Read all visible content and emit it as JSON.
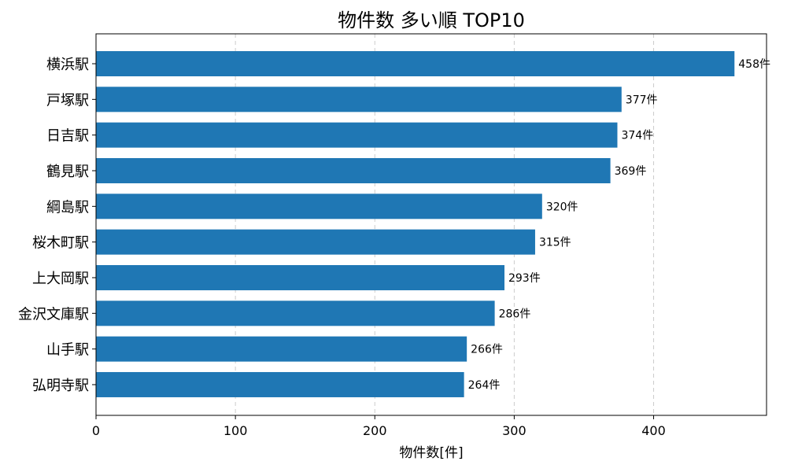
{
  "chart_data": {
    "type": "bar",
    "orientation": "horizontal",
    "title": "物件数 多い順 TOP10",
    "xlabel": "物件数[件]",
    "ylabel": "",
    "categories": [
      "横浜駅",
      "戸塚駅",
      "日吉駅",
      "鶴見駅",
      "綱島駅",
      "桜木町駅",
      "上大岡駅",
      "金沢文庫駅",
      "山手駅",
      "弘明寺駅"
    ],
    "values": [
      458,
      377,
      374,
      369,
      320,
      315,
      293,
      286,
      266,
      264
    ],
    "value_labels": [
      "458件",
      "377件",
      "374件",
      "369件",
      "320件",
      "315件",
      "293件",
      "286件",
      "266件",
      "264件"
    ],
    "xlim": [
      0,
      481
    ],
    "xticks": [
      0,
      100,
      200,
      300,
      400
    ],
    "xtick_labels": [
      "0",
      "100",
      "200",
      "300",
      "400"
    ],
    "grid": "x-dashed",
    "legend": "none",
    "bar_color": "#1f77b4",
    "grid_color": "#cccccc"
  }
}
